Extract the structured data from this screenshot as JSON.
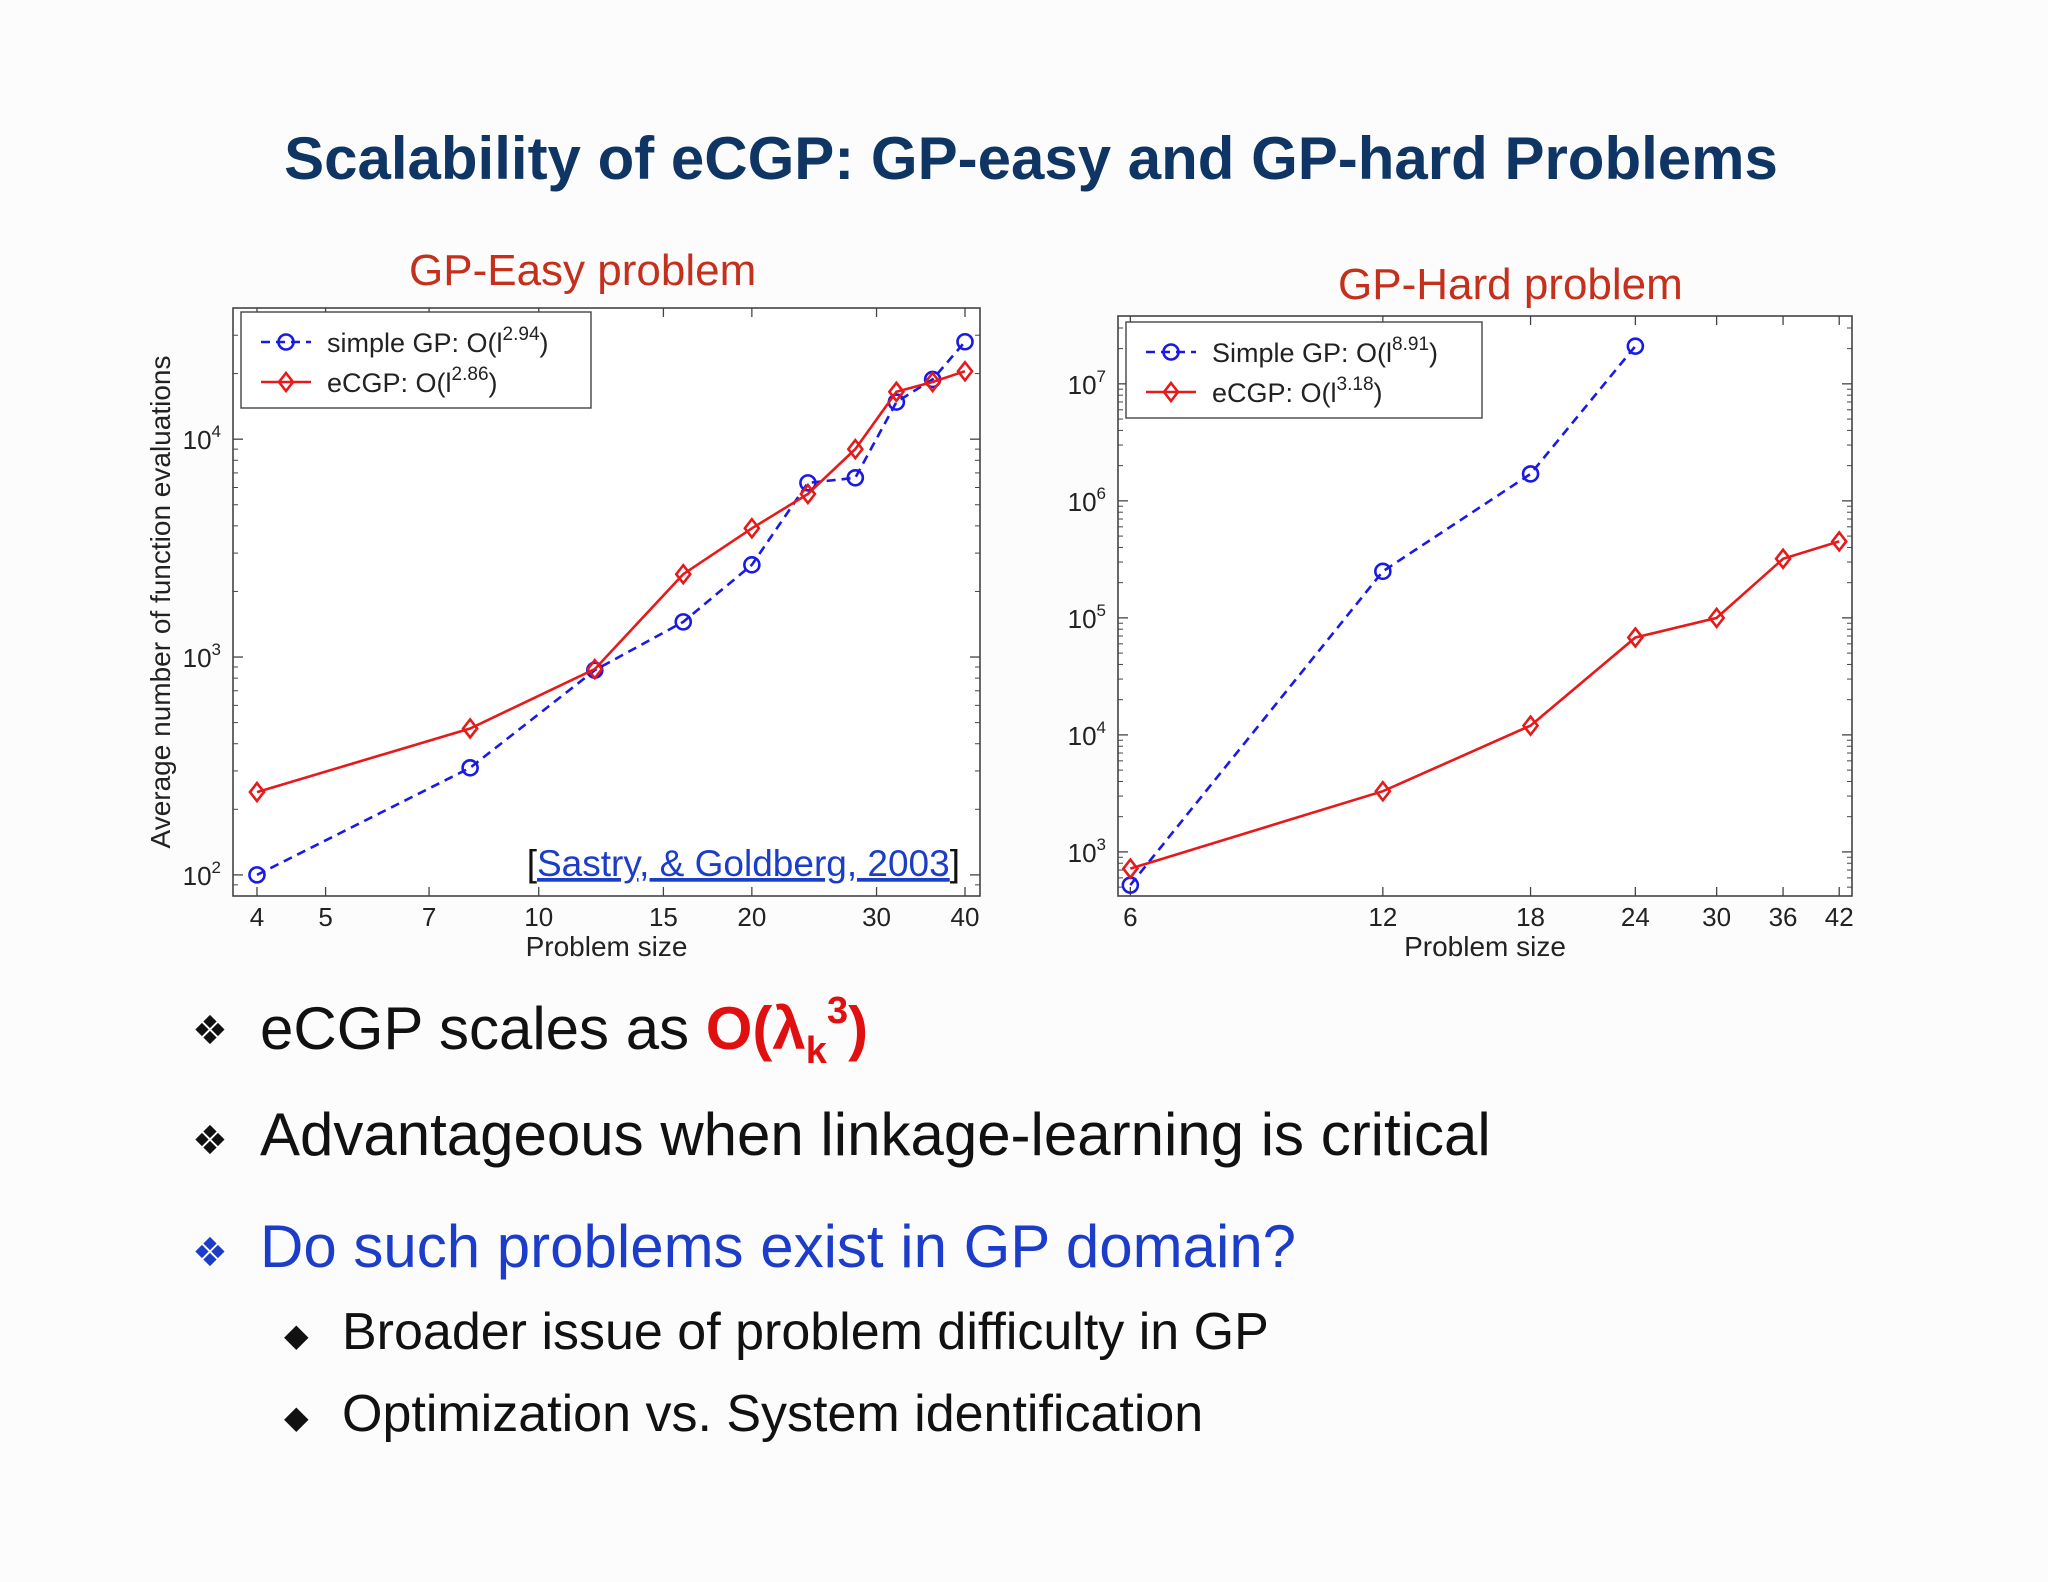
{
  "slide": {
    "title": "Scalability of eCGP: GP-easy and GP-hard Problems",
    "easy_caption": "GP-Easy problem",
    "hard_caption": "GP-Hard problem",
    "citation_open": "[",
    "citation_link": "Sastry, & Goldberg, 2003",
    "citation_close": "]"
  },
  "colors": {
    "title": "#0e3563",
    "caption": "#c4301c",
    "series_simple": "#1a1ae6",
    "series_ecgp": "#e61a1a",
    "formula": "#e01010",
    "question": "#1b3dc9"
  },
  "bullets": {
    "b1_text": "eCGP scales as ",
    "b1_formula_open": "O(λ",
    "b1_formula_sub": "k",
    "b1_formula_sup": "3",
    "b1_formula_close": ")",
    "b2_text": "Advantageous when linkage-learning is critical",
    "b3_text": "Do such problems exist in GP domain?",
    "sub1_text": "Broader issue of problem difficulty in GP",
    "sub2_text": "Optimization vs. System identification",
    "bullet_icon": "four-diamond-bullet-icon",
    "sub_bullet_icon": "diamond-bullet-icon"
  },
  "chart_data": [
    {
      "type": "line",
      "title": "GP-Easy problem",
      "xlabel": "Problem size",
      "ylabel": "Average number of function evaluations",
      "xscale": "log",
      "yscale": "log",
      "xlim": [
        3.7,
        42
      ],
      "ylim": [
        80,
        40000
      ],
      "xticks": [
        4,
        5,
        7,
        10,
        15,
        20,
        30,
        40
      ],
      "yticks": [
        {
          "value": 100,
          "base": "10",
          "exp": "2"
        },
        {
          "value": 1000,
          "base": "10",
          "exp": "3"
        },
        {
          "value": 10000,
          "base": "10",
          "exp": "4"
        }
      ],
      "legend_position": "top-left",
      "grid": false,
      "series": [
        {
          "name": "simple GP: O(l",
          "exponent": "2.94",
          "name_close": ")",
          "style": "dashed",
          "marker": "circle",
          "color": "#1a1ae6",
          "x": [
            4,
            8,
            12,
            16,
            20,
            24,
            28,
            32,
            36,
            40
          ],
          "y": [
            100,
            310,
            870,
            1450,
            2650,
            6300,
            6650,
            14800,
            18800,
            28000
          ]
        },
        {
          "name": "eCGP: O(l",
          "exponent": "2.86",
          "name_close": ")",
          "style": "solid",
          "marker": "diamond",
          "color": "#e61a1a",
          "x": [
            4,
            8,
            12,
            16,
            20,
            24,
            28,
            32,
            36,
            40
          ],
          "y": [
            240,
            470,
            880,
            2400,
            3900,
            5600,
            9000,
            16500,
            18300,
            20500
          ]
        }
      ]
    },
    {
      "type": "line",
      "title": "GP-Hard problem",
      "xlabel": "Problem size",
      "ylabel": "",
      "xscale": "log",
      "yscale": "log",
      "xlim": [
        5.8,
        43.5
      ],
      "ylim": [
        420,
        38000000
      ],
      "xticks": [
        6,
        12,
        18,
        24,
        30,
        36,
        42
      ],
      "yticks": [
        {
          "value": 1000,
          "base": "10",
          "exp": "3"
        },
        {
          "value": 10000,
          "base": "10",
          "exp": "4"
        },
        {
          "value": 100000,
          "base": "10",
          "exp": "5"
        },
        {
          "value": 1000000,
          "base": "10",
          "exp": "6"
        },
        {
          "value": 10000000,
          "base": "10",
          "exp": "7"
        }
      ],
      "legend_position": "top-left",
      "grid": false,
      "series": [
        {
          "name": "Simple GP: O(l",
          "exponent": "8.91",
          "name_close": ")",
          "style": "dashed",
          "marker": "circle",
          "color": "#1a1ae6",
          "x": [
            6,
            12,
            18,
            24
          ],
          "y": [
            520,
            250000,
            1700000,
            21000000
          ]
        },
        {
          "name": "eCGP: O(l",
          "exponent": "3.18",
          "name_close": ")",
          "style": "solid",
          "marker": "diamond",
          "color": "#e61a1a",
          "x": [
            6,
            12,
            18,
            24,
            30,
            36,
            42
          ],
          "y": [
            720,
            3300,
            12000,
            68000,
            100000,
            320000,
            450000
          ]
        }
      ]
    }
  ]
}
